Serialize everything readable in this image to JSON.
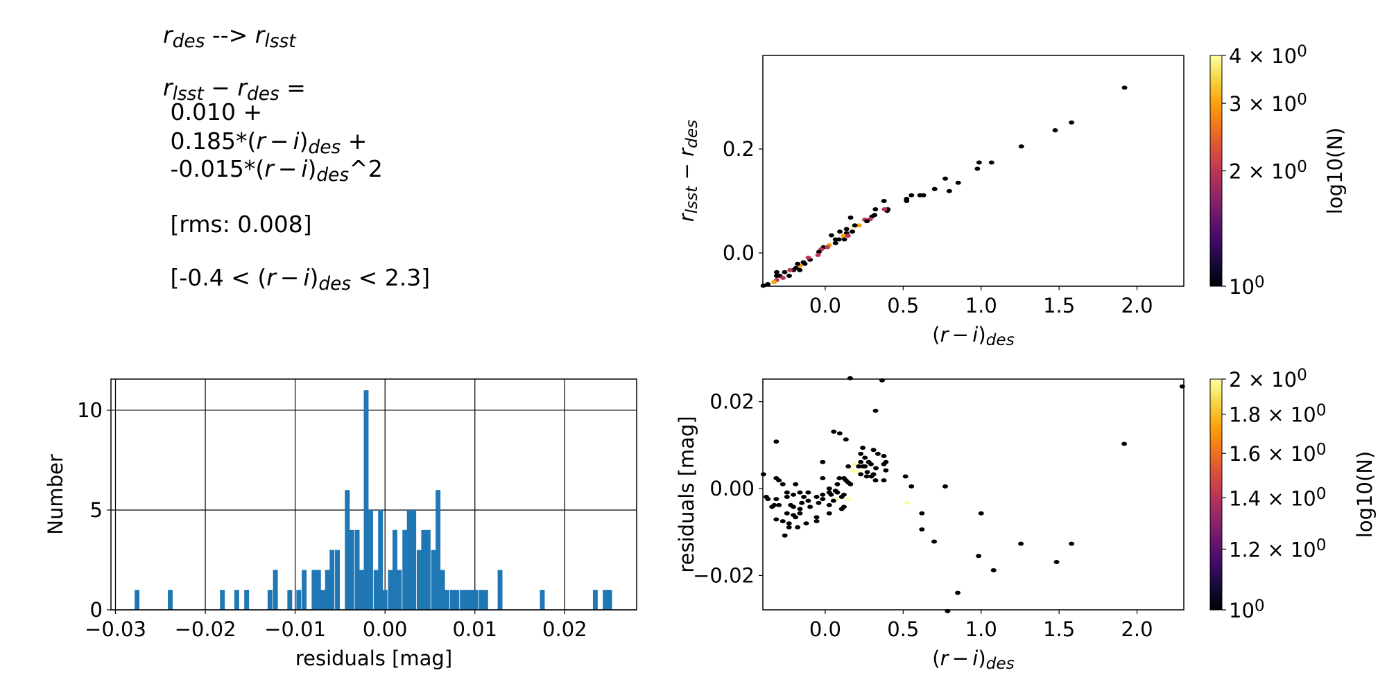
{
  "text_block": {
    "line1": "$r$_{des} --> $r$_{lsst}",
    "line2": "$r$_{lsst} − $r$_{des} =",
    "line3": " 0.010 +",
    "line4": " 0.185*($r − i$)_{des} +",
    "line5": " -0.015*($r − i$)_{des}^2",
    "line6": " [rms: 0.008]",
    "line7": " [-0.4 < ($r − i$)_{des} < 2.3]"
  },
  "chart_data": [
    {
      "type": "scatter",
      "panel": "top-right",
      "xlabel": "($r − i$)_{des}",
      "ylabel": "$r$_{lsst} − $r$_{des}",
      "xlim": [
        -0.4,
        2.3
      ],
      "ylim": [
        -0.064,
        0.38
      ],
      "xticks": [
        {
          "v": 0.0,
          "label": "0.0"
        },
        {
          "v": 0.5,
          "label": "0.5"
        },
        {
          "v": 1.0,
          "label": "1.0"
        },
        {
          "v": 1.5,
          "label": "1.5"
        },
        {
          "v": 2.0,
          "label": "2.0"
        }
      ],
      "yticks": [
        {
          "v": 0.0,
          "label": "0.0"
        },
        {
          "v": 0.2,
          "label": "0.2"
        }
      ],
      "grid": false,
      "colormap": "inferno",
      "colorbar": {
        "label": "log10(N)",
        "scale": "log",
        "range": [
          1,
          4
        ],
        "ticks": [
          {
            "v": 1,
            "label": "10^{0}"
          },
          {
            "v": 2,
            "label": "2 × 10^{0}"
          },
          {
            "v": 3,
            "label": "3 × 10^{0}"
          },
          {
            "v": 4,
            "label": "4 × 10^{0}"
          }
        ]
      },
      "points_x_y_n": [
        [
          1.92,
          0.318,
          1
        ],
        [
          1.58,
          0.251,
          1
        ],
        [
          1.475,
          0.236,
          1
        ],
        [
          1.258,
          0.205,
          1
        ],
        [
          0.976,
          0.162,
          1
        ],
        [
          0.987,
          0.174,
          1
        ],
        [
          1.067,
          0.174,
          1
        ],
        [
          0.77,
          0.143,
          1
        ],
        [
          0.853,
          0.135,
          1
        ],
        [
          0.796,
          0.119,
          1
        ],
        [
          0.702,
          0.123,
          1
        ],
        [
          0.553,
          0.111,
          1
        ],
        [
          0.608,
          0.111,
          1
        ],
        [
          0.63,
          0.111,
          1
        ],
        [
          0.522,
          0.104,
          1
        ],
        [
          0.522,
          0.1,
          1
        ],
        [
          0.377,
          0.1,
          1
        ],
        [
          0.322,
          0.084,
          1
        ],
        [
          0.402,
          0.084,
          1
        ],
        [
          0.397,
          0.081,
          1
        ],
        [
          0.38,
          0.084,
          2
        ],
        [
          0.317,
          0.073,
          1
        ],
        [
          0.3,
          0.07,
          1
        ],
        [
          0.288,
          0.065,
          2
        ],
        [
          0.254,
          0.064,
          2
        ],
        [
          0.268,
          0.061,
          1
        ],
        [
          0.217,
          0.053,
          3
        ],
        [
          0.18,
          0.049,
          4
        ],
        [
          0.163,
          0.068,
          1
        ],
        [
          0.19,
          0.053,
          1
        ],
        [
          0.137,
          0.046,
          1
        ],
        [
          0.174,
          0.041,
          1
        ],
        [
          0.094,
          0.041,
          1
        ],
        [
          0.04,
          0.034,
          1
        ],
        [
          0.137,
          0.038,
          1
        ],
        [
          0.117,
          0.033,
          3
        ],
        [
          0.146,
          0.033,
          2
        ],
        [
          0.066,
          0.026,
          1
        ],
        [
          0.088,
          0.026,
          1
        ],
        [
          0.123,
          0.026,
          1
        ],
        [
          0.066,
          0.019,
          1
        ],
        [
          0.026,
          0.015,
          3
        ],
        [
          -0.011,
          0.011,
          1
        ],
        [
          0.014,
          0.011,
          2
        ],
        [
          -0.026,
          0.007,
          2
        ],
        [
          -0.04,
          0.002,
          1
        ],
        [
          -0.046,
          -0.004,
          2
        ],
        [
          -0.097,
          -0.013,
          1
        ],
        [
          -0.108,
          -0.009,
          2
        ],
        [
          -0.131,
          -0.021,
          1
        ],
        [
          -0.14,
          -0.018,
          1
        ],
        [
          -0.163,
          -0.025,
          3
        ],
        [
          -0.177,
          -0.021,
          1
        ],
        [
          -0.188,
          -0.029,
          1
        ],
        [
          -0.203,
          -0.033,
          1
        ],
        [
          -0.163,
          -0.033,
          1
        ],
        [
          -0.225,
          -0.033,
          2
        ],
        [
          -0.26,
          -0.037,
          1
        ],
        [
          -0.311,
          -0.037,
          1
        ],
        [
          -0.231,
          -0.044,
          1
        ],
        [
          -0.291,
          -0.044,
          1
        ],
        [
          -0.311,
          -0.044,
          1
        ],
        [
          -0.271,
          -0.048,
          2
        ],
        [
          -0.311,
          -0.052,
          2
        ],
        [
          -0.328,
          -0.056,
          3
        ],
        [
          -0.368,
          -0.06,
          1
        ],
        [
          -0.397,
          -0.063,
          1
        ]
      ]
    },
    {
      "type": "bar",
      "panel": "bottom-left",
      "xlabel": "residuals [mag]",
      "ylabel": "Number",
      "xlim": [
        -0.0305,
        0.028
      ],
      "ylim": [
        0,
        11.56
      ],
      "xticks": [
        {
          "v": -0.03,
          "label": "−0.03"
        },
        {
          "v": -0.02,
          "label": "−0.02"
        },
        {
          "v": -0.01,
          "label": "−0.01"
        },
        {
          "v": 0.0,
          "label": "0.00"
        },
        {
          "v": 0.01,
          "label": "0.01"
        },
        {
          "v": 0.02,
          "label": "0.02"
        }
      ],
      "yticks": [
        {
          "v": 0,
          "label": "0"
        },
        {
          "v": 5,
          "label": "5"
        },
        {
          "v": 10,
          "label": "10"
        }
      ],
      "grid": true,
      "bar_color": "#1f77b4",
      "bin_width": 0.000535,
      "bins_center_count": [
        [
          -0.0276,
          1
        ],
        [
          -0.0239,
          1
        ],
        [
          -0.0181,
          1
        ],
        [
          -0.0165,
          1
        ],
        [
          -0.0154,
          1
        ],
        [
          -0.0128,
          1
        ],
        [
          -0.0122,
          2
        ],
        [
          -0.0106,
          1
        ],
        [
          -0.0096,
          1
        ],
        [
          -0.009,
          2
        ],
        [
          -0.0079,
          2
        ],
        [
          -0.0074,
          2
        ],
        [
          -0.0069,
          1
        ],
        [
          -0.0064,
          2
        ],
        [
          -0.0059,
          3
        ],
        [
          -0.0053,
          3
        ],
        [
          -0.0042,
          6
        ],
        [
          -0.0037,
          4
        ],
        [
          -0.0031,
          4
        ],
        [
          -0.0026,
          2
        ],
        [
          -0.0021,
          11
        ],
        [
          -0.0016,
          5
        ],
        [
          -0.001,
          2
        ],
        [
          -0.0005,
          5
        ],
        [
          0.0,
          1
        ],
        [
          0.0006,
          2
        ],
        [
          0.0011,
          4
        ],
        [
          0.0016,
          2
        ],
        [
          0.0022,
          4
        ],
        [
          0.0027,
          5
        ],
        [
          0.0032,
          5
        ],
        [
          0.0038,
          3
        ],
        [
          0.0043,
          4
        ],
        [
          0.0048,
          4
        ],
        [
          0.0054,
          3
        ],
        [
          0.0059,
          6
        ],
        [
          0.0064,
          2
        ],
        [
          0.0069,
          1
        ],
        [
          0.0075,
          1
        ],
        [
          0.008,
          1
        ],
        [
          0.0086,
          1
        ],
        [
          0.0091,
          1
        ],
        [
          0.0096,
          1
        ],
        [
          0.0101,
          1
        ],
        [
          0.0107,
          1
        ],
        [
          0.0112,
          1
        ],
        [
          0.0128,
          2
        ],
        [
          0.0175,
          1
        ],
        [
          0.0234,
          1
        ],
        [
          0.0245,
          1
        ],
        [
          0.025,
          1
        ]
      ]
    },
    {
      "type": "scatter",
      "panel": "bottom-right",
      "xlabel": "($r − i$)_{des}",
      "ylabel": "residuals [mag]",
      "xlim": [
        -0.4,
        2.3
      ],
      "ylim": [
        -0.0279,
        0.0252
      ],
      "xticks": [
        {
          "v": 0.0,
          "label": "0.0"
        },
        {
          "v": 0.5,
          "label": "0.5"
        },
        {
          "v": 1.0,
          "label": "1.0"
        },
        {
          "v": 1.5,
          "label": "1.5"
        },
        {
          "v": 2.0,
          "label": "2.0"
        }
      ],
      "yticks": [
        {
          "v": -0.02,
          "label": "−0.02"
        },
        {
          "v": 0.0,
          "label": "0.00"
        },
        {
          "v": 0.02,
          "label": "0.02"
        }
      ],
      "grid": false,
      "colormap": "inferno",
      "colorbar": {
        "label": "log10(N)",
        "scale": "log",
        "range": [
          1,
          2
        ],
        "ticks": [
          {
            "v": 1,
            "label": "10^{0}"
          },
          {
            "v": 1.2,
            "label": "1.2 × 10^{0}"
          },
          {
            "v": 1.4,
            "label": "1.4 × 10^{0}"
          },
          {
            "v": 1.6,
            "label": "1.6 × 10^{0}"
          },
          {
            "v": 1.8,
            "label": "1.8 × 10^{0}"
          },
          {
            "v": 2,
            "label": "2 × 10^{0}"
          }
        ]
      },
      "points_x_y_n": [
        [
          0.16,
          0.0254,
          1
        ],
        [
          0.365,
          0.0249,
          1
        ],
        [
          2.29,
          0.0235,
          1
        ],
        [
          0.323,
          0.0179,
          1
        ],
        [
          0.055,
          0.0131,
          1
        ],
        [
          0.093,
          0.0127,
          1
        ],
        [
          0.133,
          0.0113,
          1
        ],
        [
          -0.314,
          0.0108,
          1
        ],
        [
          1.918,
          0.0103,
          1
        ],
        [
          0.241,
          0.0094,
          1
        ],
        [
          0.31,
          0.0089,
          1
        ],
        [
          0.228,
          0.008,
          1
        ],
        [
          0.338,
          0.008,
          1
        ],
        [
          0.376,
          0.0075,
          1
        ],
        [
          0.255,
          0.0071,
          1
        ],
        [
          -0.016,
          0.0061,
          1
        ],
        [
          0.228,
          0.0061,
          1
        ],
        [
          0.279,
          0.0061,
          1
        ],
        [
          0.389,
          0.0061,
          1
        ],
        [
          0.294,
          0.0056,
          1
        ],
        [
          0.376,
          0.0056,
          1
        ],
        [
          0.148,
          0.0051,
          1
        ],
        [
          0.188,
          0.0056,
          2
        ],
        [
          0.215,
          0.0051,
          1
        ],
        [
          0.243,
          0.0051,
          1
        ],
        [
          0.255,
          0.0051,
          1
        ],
        [
          0.325,
          0.0047,
          1
        ],
        [
          0.175,
          0.0042,
          2
        ],
        [
          0.389,
          0.0042,
          1
        ],
        [
          0.215,
          0.0038,
          2
        ],
        [
          0.27,
          0.0038,
          1
        ],
        [
          0.228,
          0.0033,
          1
        ],
        [
          0.31,
          0.0033,
          1
        ],
        [
          0.266,
          0.0028,
          1
        ],
        [
          0.297,
          0.0028,
          1
        ],
        [
          0.515,
          0.0028,
          1
        ],
        [
          -0.396,
          0.0033,
          1
        ],
        [
          -0.016,
          0.0024,
          1
        ],
        [
          0.091,
          0.0024,
          1
        ],
        [
          0.12,
          0.0024,
          1
        ],
        [
          -0.314,
          0.0024,
          1
        ],
        [
          -0.297,
          0.0019,
          1
        ],
        [
          0.323,
          0.0019,
          1
        ],
        [
          0.376,
          0.0019,
          1
        ],
        [
          0.133,
          0.0019,
          1
        ],
        [
          0.148,
          0.0014,
          1
        ],
        [
          0.162,
          0.001,
          1
        ],
        [
          -0.272,
          0.001,
          1
        ],
        [
          -0.19,
          0.001,
          1
        ],
        [
          0.078,
          0.001,
          1
        ],
        [
          0.553,
          0.0005,
          1
        ],
        [
          0.77,
          0.0005,
          1
        ],
        [
          0.026,
          0.0,
          1
        ],
        [
          0.066,
          -0.0005,
          1
        ],
        [
          -0.245,
          -0.0009,
          1
        ],
        [
          -0.162,
          -0.0009,
          1
        ],
        [
          -0.109,
          -0.0009,
          1
        ],
        [
          0.026,
          -0.0009,
          1
        ],
        [
          0.078,
          -0.0009,
          1
        ],
        [
          -0.204,
          -0.0014,
          1
        ],
        [
          -0.016,
          -0.0014,
          1
        ],
        [
          0.038,
          -0.0014,
          1
        ],
        [
          0.12,
          -0.0014,
          1
        ],
        [
          -0.378,
          -0.0019,
          1
        ],
        [
          -0.245,
          -0.0019,
          1
        ],
        [
          -0.137,
          -0.0019,
          1
        ],
        [
          -0.055,
          -0.0019,
          1
        ],
        [
          0.106,
          -0.0019,
          1
        ],
        [
          -0.367,
          -0.0024,
          1
        ],
        [
          -0.314,
          -0.0024,
          1
        ],
        [
          -0.016,
          -0.0024,
          1
        ],
        [
          0.066,
          -0.0024,
          2
        ],
        [
          0.148,
          -0.0024,
          2
        ],
        [
          -0.109,
          -0.0028,
          1
        ],
        [
          0.053,
          -0.0028,
          1
        ],
        [
          -0.15,
          -0.0033,
          1
        ],
        [
          -0.042,
          -0.0033,
          1
        ],
        [
          0.526,
          -0.0033,
          2
        ],
        [
          -0.297,
          -0.0038,
          1
        ],
        [
          -0.221,
          -0.0038,
          1
        ],
        [
          0.026,
          -0.0038,
          1
        ],
        [
          -0.327,
          -0.0038,
          1
        ],
        [
          -0.341,
          -0.0042,
          1
        ],
        [
          -0.204,
          -0.0042,
          1
        ],
        [
          -0.097,
          -0.0042,
          1
        ],
        [
          0.12,
          -0.0042,
          1
        ],
        [
          -0.162,
          -0.0047,
          1
        ],
        [
          0.106,
          -0.0047,
          1
        ],
        [
          -0.245,
          -0.0057,
          1
        ],
        [
          -0.162,
          -0.0057,
          1
        ],
        [
          0.026,
          -0.0057,
          1
        ],
        [
          0.62,
          -0.0057,
          1
        ],
        [
          1.0,
          -0.0057,
          1
        ],
        [
          -0.204,
          -0.0061,
          1
        ],
        [
          -0.19,
          -0.0066,
          1
        ],
        [
          -0.055,
          -0.0066,
          1
        ],
        [
          -0.314,
          -0.0071,
          1
        ],
        [
          -0.272,
          -0.0075,
          1
        ],
        [
          -0.055,
          -0.0075,
          1
        ],
        [
          -0.232,
          -0.008,
          1
        ],
        [
          -0.122,
          -0.008,
          1
        ],
        [
          -0.232,
          -0.0089,
          1
        ],
        [
          -0.177,
          -0.0089,
          1
        ],
        [
          0.62,
          -0.0094,
          1
        ],
        [
          -0.259,
          -0.0108,
          1
        ],
        [
          0.699,
          -0.0122,
          1
        ],
        [
          1.255,
          -0.0127,
          1
        ],
        [
          1.58,
          -0.0127,
          1
        ],
        [
          0.984,
          -0.0155,
          1
        ],
        [
          1.484,
          -0.0169,
          1
        ],
        [
          1.08,
          -0.0188,
          1
        ],
        [
          0.85,
          -0.024,
          1
        ],
        [
          0.785,
          -0.0282,
          1
        ]
      ]
    }
  ]
}
